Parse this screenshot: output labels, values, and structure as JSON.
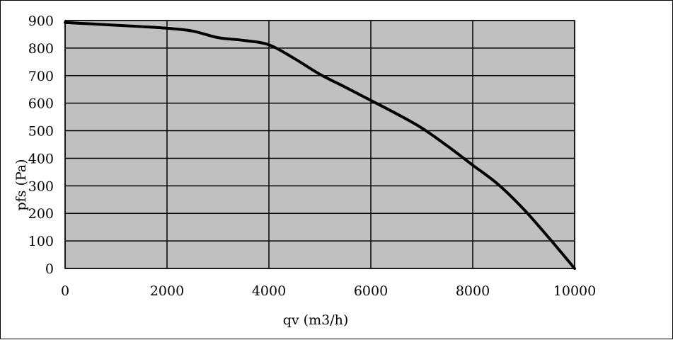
{
  "chart_data": {
    "type": "line",
    "title": "",
    "xlabel": "qv (m3/h)",
    "ylabel": "pfs (Pa)",
    "xlim": [
      0,
      10000
    ],
    "ylim": [
      0,
      900
    ],
    "x_ticks": [
      0,
      2000,
      4000,
      6000,
      8000,
      10000
    ],
    "y_ticks": [
      0,
      100,
      200,
      300,
      400,
      500,
      600,
      700,
      800,
      900
    ],
    "x_tick_labels": [
      "0",
      "2000",
      "4000",
      "6000",
      "8000",
      "10000"
    ],
    "y_tick_labels": [
      "0",
      "100",
      "200",
      "300",
      "400",
      "500",
      "600",
      "700",
      "800",
      "900"
    ],
    "grid": true,
    "legend": "none",
    "plot_background": "#c0c0c0",
    "grid_color": "#000000",
    "line_color": "#000000",
    "series": [
      {
        "x": [
          0,
          500,
          1000,
          1500,
          2000,
          2500,
          3000,
          3500,
          4000,
          4500,
          5000,
          5500,
          6000,
          6500,
          7000,
          7500,
          8000,
          8500,
          9000,
          9500,
          10000
        ],
        "y": [
          893,
          888,
          883,
          878,
          872,
          862,
          838,
          828,
          812,
          762,
          705,
          658,
          610,
          562,
          510,
          445,
          375,
          305,
          215,
          110,
          0
        ]
      }
    ]
  }
}
